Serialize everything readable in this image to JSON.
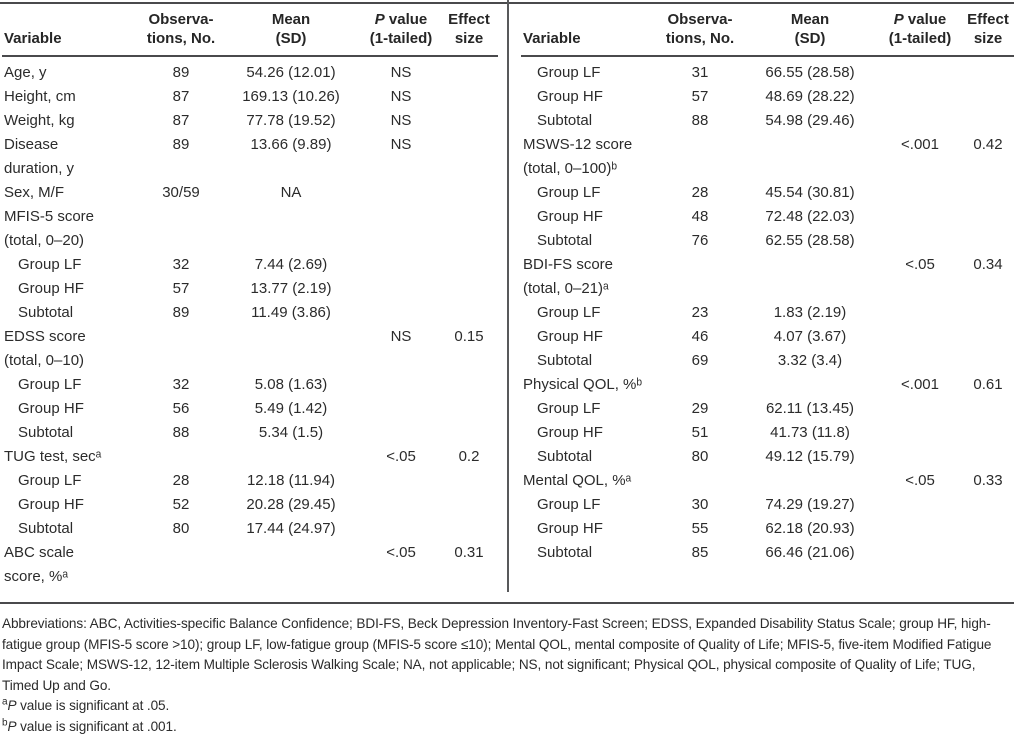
{
  "header": {
    "variable": "Variable",
    "obs_line1": "Observa-",
    "obs_line2": "tions, No.",
    "mean_line1": "Mean",
    "mean_line2": "(SD)",
    "p_italic": "P",
    "p_rest": " value",
    "p_line2": "(1-tailed)",
    "effect_line1": "Effect",
    "effect_line2": "size"
  },
  "left_table": {
    "rows": [
      {
        "label": "Age, y",
        "indent": false,
        "obs": "89",
        "mean": "54.26 (12.01)",
        "p": "NS",
        "effect": ""
      },
      {
        "label": "Height, cm",
        "indent": false,
        "obs": "87",
        "mean": "169.13 (10.26)",
        "p": "NS",
        "effect": ""
      },
      {
        "label": "Weight, kg",
        "indent": false,
        "obs": "87",
        "mean": "77.78 (19.52)",
        "p": "NS",
        "effect": ""
      },
      {
        "label": "Disease\nduration, y",
        "indent": false,
        "obs": "89",
        "mean": "13.66 (9.89)",
        "p": "NS",
        "effect": ""
      },
      {
        "label": "Sex, M/F",
        "indent": false,
        "obs": "30/59",
        "mean": "NA",
        "p": "",
        "effect": ""
      },
      {
        "label": "MFIS-5 score\n(total, 0–20)",
        "indent": false,
        "obs": "",
        "mean": "",
        "p": "",
        "effect": ""
      },
      {
        "label": "Group LF",
        "indent": true,
        "obs": "32",
        "mean": "7.44 (2.69)",
        "p": "",
        "effect": ""
      },
      {
        "label": "Group HF",
        "indent": true,
        "obs": "57",
        "mean": "13.77 (2.19)",
        "p": "",
        "effect": ""
      },
      {
        "label": "Subtotal",
        "indent": true,
        "obs": "89",
        "mean": "11.49 (3.86)",
        "p": "",
        "effect": ""
      },
      {
        "label": "EDSS score\n(total, 0–10)",
        "indent": false,
        "obs": "",
        "mean": "",
        "p": "NS",
        "effect": "0.15"
      },
      {
        "label": "Group LF",
        "indent": true,
        "obs": "32",
        "mean": "5.08 (1.63)",
        "p": "",
        "effect": ""
      },
      {
        "label": "Group HF",
        "indent": true,
        "obs": "56",
        "mean": "5.49 (1.42)",
        "p": "",
        "effect": ""
      },
      {
        "label": "Subtotal",
        "indent": true,
        "obs": "88",
        "mean": "5.34 (1.5)",
        "p": "",
        "effect": ""
      },
      {
        "label": "TUG test, secᵃ",
        "indent": false,
        "obs": "",
        "mean": "",
        "p": "<.05",
        "effect": "0.2"
      },
      {
        "label": "Group LF",
        "indent": true,
        "obs": "28",
        "mean": "12.18 (11.94)",
        "p": "",
        "effect": ""
      },
      {
        "label": "Group HF",
        "indent": true,
        "obs": "52",
        "mean": "20.28 (29.45)",
        "p": "",
        "effect": ""
      },
      {
        "label": "Subtotal",
        "indent": true,
        "obs": "80",
        "mean": "17.44 (24.97)",
        "p": "",
        "effect": ""
      },
      {
        "label": "ABC scale\nscore, %ᵃ",
        "indent": false,
        "obs": "",
        "mean": "",
        "p": "<.05",
        "effect": "0.31"
      }
    ]
  },
  "right_table": {
    "rows": [
      {
        "label": "Group LF",
        "indent": true,
        "obs": "31",
        "mean": "66.55 (28.58)",
        "p": "",
        "effect": ""
      },
      {
        "label": "Group HF",
        "indent": true,
        "obs": "57",
        "mean": "48.69 (28.22)",
        "p": "",
        "effect": ""
      },
      {
        "label": "Subtotal",
        "indent": true,
        "obs": "88",
        "mean": "54.98 (29.46)",
        "p": "",
        "effect": ""
      },
      {
        "label": "MSWS-12 score\n(total, 0–100)ᵇ",
        "indent": false,
        "obs": "",
        "mean": "",
        "p": "<.001",
        "effect": "0.42"
      },
      {
        "label": "Group LF",
        "indent": true,
        "obs": "28",
        "mean": "45.54 (30.81)",
        "p": "",
        "effect": ""
      },
      {
        "label": "Group HF",
        "indent": true,
        "obs": "48",
        "mean": "72.48 (22.03)",
        "p": "",
        "effect": ""
      },
      {
        "label": "Subtotal",
        "indent": true,
        "obs": "76",
        "mean": "62.55 (28.58)",
        "p": "",
        "effect": ""
      },
      {
        "label": "BDI-FS score\n(total, 0–21)ᵃ",
        "indent": false,
        "obs": "",
        "mean": "",
        "p": "<.05",
        "effect": "0.34"
      },
      {
        "label": "Group LF",
        "indent": true,
        "obs": "23",
        "mean": "1.83 (2.19)",
        "p": "",
        "effect": ""
      },
      {
        "label": "Group HF",
        "indent": true,
        "obs": "46",
        "mean": "4.07 (3.67)",
        "p": "",
        "effect": ""
      },
      {
        "label": "Subtotal",
        "indent": true,
        "obs": "69",
        "mean": "3.32 (3.4)",
        "p": "",
        "effect": ""
      },
      {
        "label": "Physical QOL, %ᵇ",
        "indent": false,
        "obs": "",
        "mean": "",
        "p": "<.001",
        "effect": "0.61"
      },
      {
        "label": "Group LF",
        "indent": true,
        "obs": "29",
        "mean": "62.11 (13.45)",
        "p": "",
        "effect": ""
      },
      {
        "label": "Group HF",
        "indent": true,
        "obs": "51",
        "mean": "41.73 (11.8)",
        "p": "",
        "effect": ""
      },
      {
        "label": "Subtotal",
        "indent": true,
        "obs": "80",
        "mean": "49.12 (15.79)",
        "p": "",
        "effect": ""
      },
      {
        "label": "Mental QOL, %ᵃ",
        "indent": false,
        "obs": "",
        "mean": "",
        "p": "<.05",
        "effect": "0.33"
      },
      {
        "label": "Group LF",
        "indent": true,
        "obs": "30",
        "mean": "74.29 (19.27)",
        "p": "",
        "effect": ""
      },
      {
        "label": "Group HF",
        "indent": true,
        "obs": "55",
        "mean": "62.18 (20.93)",
        "p": "",
        "effect": ""
      },
      {
        "label": "Subtotal",
        "indent": true,
        "obs": "85",
        "mean": "66.46 (21.06)",
        "p": "",
        "effect": ""
      }
    ]
  },
  "footnotes": {
    "abbreviations": "Abbreviations: ABC, Activities-specific Balance Confidence; BDI-FS, Beck Depression Inventory-Fast Screen; EDSS, Expanded Disability Status Scale; group HF, high-fatigue group (MFIS-5 score >10); group LF, low-fatigue group (MFIS-5 score ≤10); Mental QOL, mental composite of Quality of Life; MFIS-5, five-item Modified Fatigue Impact Scale; MSWS-12, 12-item Multiple Sclerosis Walking Scale; NA, not applicable; NS, not significant; Physical QOL, physical composite of Quality of Life; TUG, Timed Up and Go.",
    "notes": [
      {
        "marker": "a",
        "p": "P",
        "text": " value is significant at .05."
      },
      {
        "marker": "b",
        "p": "P",
        "text": " value is significant at .001."
      }
    ]
  }
}
